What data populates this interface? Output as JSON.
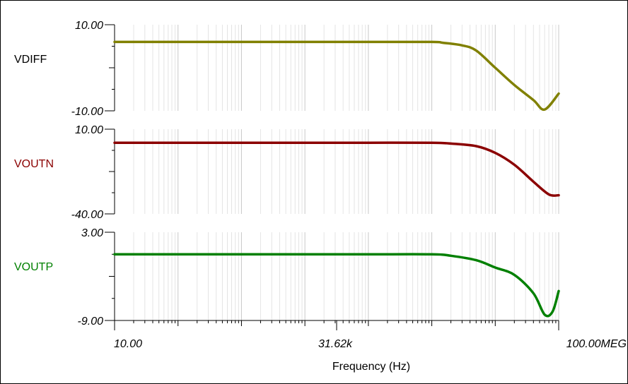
{
  "chart_data": {
    "type": "line",
    "x_scale": "log",
    "xlim": [
      10,
      100000000
    ],
    "x_tick_labels": [
      "10.00",
      "31.62k",
      "100.00MEG"
    ],
    "xlabel": "Frequency (Hz)",
    "grid": true,
    "panels": [
      {
        "name": "VDIFF",
        "color": "#808000",
        "ylim": [
          -10,
          10
        ],
        "y_tick_labels": [
          "10.00",
          "-10.00"
        ],
        "series": [
          {
            "name": "VDIFF",
            "x": [
              10,
              100,
              1000,
              10000,
              100000,
              1000000,
              1500000,
              3000000,
              5000000,
              10000000,
              20000000,
              40000000,
              60000000,
              100000000
            ],
            "y": [
              6.0,
              6.0,
              6.0,
              6.0,
              6.0,
              6.0,
              5.8,
              5.2,
              4.0,
              0.0,
              -4.0,
              -7.5,
              -9.7,
              -6.0
            ]
          }
        ]
      },
      {
        "name": "VOUTN",
        "color": "#8b0000",
        "ylim": [
          -40,
          10
        ],
        "y_tick_labels": [
          "10.00",
          "-40.00"
        ],
        "series": [
          {
            "name": "VOUTN",
            "x": [
              10,
              100,
              1000,
              10000,
              100000,
              1000000,
              2000000,
              5000000,
              10000000,
              20000000,
              40000000,
              70000000,
              100000000
            ],
            "y": [
              2.0,
              2.0,
              2.0,
              2.0,
              2.0,
              2.0,
              1.5,
              0.0,
              -4.0,
              -11.0,
              -21.0,
              -28.5,
              -29.0
            ]
          }
        ]
      },
      {
        "name": "VOUTP",
        "color": "#008000",
        "ylim": [
          -9,
          3
        ],
        "y_tick_labels": [
          "3.00",
          "-9.00"
        ],
        "series": [
          {
            "name": "VOUTP",
            "x": [
              10,
              100,
              1000,
              10000,
              100000,
              1000000,
              2000000,
              5000000,
              10000000,
              20000000,
              40000000,
              60000000,
              80000000,
              100000000
            ],
            "y": [
              0.0,
              0.0,
              0.0,
              0.0,
              0.0,
              0.0,
              -0.2,
              -0.8,
              -1.8,
              -2.8,
              -5.3,
              -8.2,
              -7.8,
              -5.0
            ]
          }
        ]
      }
    ]
  }
}
